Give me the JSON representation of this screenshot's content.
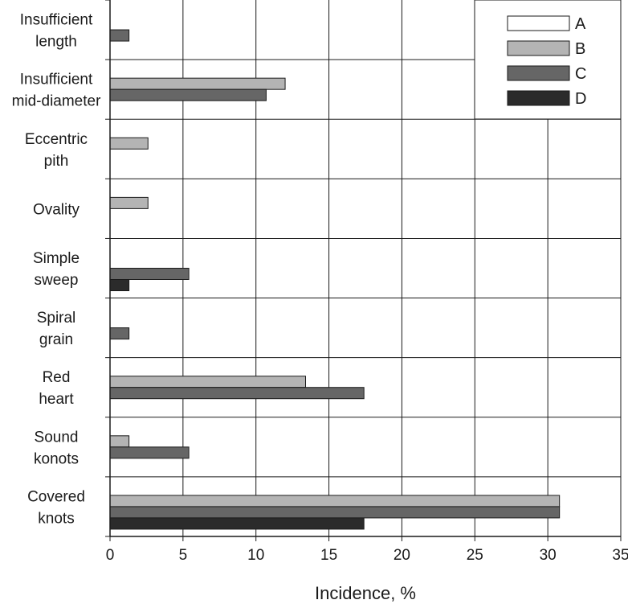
{
  "chart_data": {
    "type": "bar",
    "orientation": "horizontal",
    "categories": [
      [
        "Insufficient",
        "length"
      ],
      [
        "Insufficient",
        "mid-diameter"
      ],
      [
        "Eccentric",
        "pith"
      ],
      [
        "Ovality"
      ],
      [
        "Simple",
        "sweep"
      ],
      [
        "Spiral",
        "grain"
      ],
      [
        "Red",
        "heart"
      ],
      [
        "Sound",
        "konots"
      ],
      [
        "Covered",
        "knots"
      ]
    ],
    "series": [
      {
        "name": "A",
        "color": "#ffffff",
        "values": [
          0,
          0,
          0,
          0,
          0,
          0,
          0,
          0,
          0
        ]
      },
      {
        "name": "B",
        "color": "#b4b4b4",
        "values": [
          0,
          12.0,
          2.6,
          2.6,
          0,
          0,
          13.4,
          1.3,
          30.8
        ]
      },
      {
        "name": "C",
        "color": "#666666",
        "values": [
          1.3,
          10.7,
          0,
          0,
          5.4,
          1.3,
          17.4,
          5.4,
          30.8
        ]
      },
      {
        "name": "D",
        "color": "#2b2b2b",
        "values": [
          0,
          0,
          0,
          0,
          1.3,
          0,
          0,
          0,
          17.4
        ]
      }
    ],
    "xlabel": "Incidence, %",
    "ylabel": "",
    "xlim": [
      0,
      35
    ],
    "xticks": [
      0,
      5,
      10,
      15,
      20,
      25,
      30,
      35
    ],
    "grid": true,
    "legend_position": "top-right"
  }
}
